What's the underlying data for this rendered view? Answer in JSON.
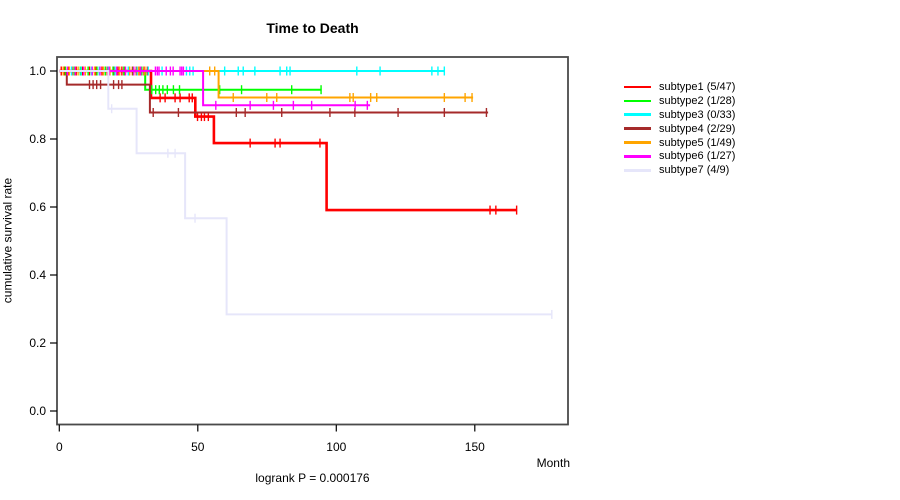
{
  "chart_data": {
    "type": "line",
    "variant": "kaplan-meier-step",
    "title": "Time to Death",
    "xlabel": "Month",
    "ylabel": "cumulative survival rate",
    "footnote": "logrank P = 0.000176",
    "x_ticks": [
      0,
      50,
      100,
      150
    ],
    "y_ticks": [
      "0.0",
      "0.2",
      "0.4",
      "0.6",
      "0.8",
      "1.0"
    ],
    "xlim": [
      -1,
      184
    ],
    "ylim": [
      -0.04,
      1.04
    ],
    "grid": false,
    "legend_position": "right",
    "series": [
      {
        "name": "subtype1",
        "label": "subtype1 (5/47)",
        "events": "5/47",
        "color": "#ff0000",
        "line_width": 2.6,
        "steps": [
          [
            0,
            1
          ],
          [
            33.1,
            1
          ],
          [
            33.1,
            0.921
          ],
          [
            49.1,
            0.921
          ],
          [
            49.1,
            0.866
          ],
          [
            55.8,
            0.866
          ],
          [
            55.8,
            0.788
          ],
          [
            96.5,
            0.788
          ],
          [
            96.5,
            0.591
          ],
          [
            165.1,
            0.591
          ]
        ],
        "censors": [
          [
            0.7,
            1
          ],
          [
            1.8,
            1
          ],
          [
            3.2,
            1
          ],
          [
            4.6,
            1
          ],
          [
            6.1,
            1
          ],
          [
            8.3,
            1
          ],
          [
            10.9,
            1
          ],
          [
            13.2,
            1
          ],
          [
            15.4,
            1
          ],
          [
            17.3,
            1
          ],
          [
            19.8,
            1
          ],
          [
            21.2,
            1
          ],
          [
            22.6,
            1
          ],
          [
            23.8,
            1
          ],
          [
            25.1,
            1
          ],
          [
            26.4,
            1
          ],
          [
            27.8,
            1
          ],
          [
            29.2,
            1
          ],
          [
            30.6,
            1
          ],
          [
            31.8,
            1
          ],
          [
            36.4,
            0.921
          ],
          [
            38.2,
            0.921
          ],
          [
            41.8,
            0.921
          ],
          [
            43.6,
            0.921
          ],
          [
            46.9,
            0.921
          ],
          [
            48,
            0.921
          ],
          [
            49.9,
            0.866
          ],
          [
            51.3,
            0.866
          ],
          [
            52.4,
            0.866
          ],
          [
            53.8,
            0.866
          ],
          [
            68.9,
            0.788
          ],
          [
            77.9,
            0.788
          ],
          [
            79.7,
            0.788
          ],
          [
            94.1,
            0.788
          ],
          [
            155.5,
            0.591
          ],
          [
            157.6,
            0.591
          ],
          [
            165.1,
            0.591
          ]
        ]
      },
      {
        "name": "subtype2",
        "label": "subtype2 (1/28)",
        "events": "1/28",
        "color": "#00ff00",
        "line_width": 2,
        "steps": [
          [
            0,
            1
          ],
          [
            31,
            1
          ],
          [
            31,
            0.945
          ],
          [
            94.7,
            0.945
          ]
        ],
        "censors": [
          [
            2.2,
            1
          ],
          [
            5.3,
            1
          ],
          [
            7.6,
            1
          ],
          [
            10.4,
            1
          ],
          [
            13.6,
            1
          ],
          [
            16.6,
            1
          ],
          [
            19.4,
            1
          ],
          [
            23.3,
            1
          ],
          [
            26.7,
            1
          ],
          [
            29.8,
            1
          ],
          [
            33.4,
            0.945
          ],
          [
            34.8,
            0.945
          ],
          [
            36.1,
            0.945
          ],
          [
            37.4,
            0.945
          ],
          [
            39,
            0.945
          ],
          [
            41.2,
            0.945
          ],
          [
            43.4,
            0.945
          ],
          [
            57.9,
            0.945
          ],
          [
            65.8,
            0.945
          ],
          [
            83.9,
            0.945
          ],
          [
            94.5,
            0.945
          ]
        ]
      },
      {
        "name": "subtype3",
        "label": "subtype3 (0/33)",
        "events": "0/33",
        "color": "#00ffff",
        "line_width": 2,
        "steps": [
          [
            0,
            1
          ],
          [
            139.2,
            1
          ]
        ],
        "censors": [
          [
            4.4,
            1
          ],
          [
            7.9,
            1
          ],
          [
            11.6,
            1
          ],
          [
            14.4,
            1
          ],
          [
            17.6,
            1
          ],
          [
            20.1,
            1
          ],
          [
            24.9,
            1
          ],
          [
            28.1,
            1
          ],
          [
            32.1,
            1
          ],
          [
            37.1,
            1
          ],
          [
            45.9,
            1
          ],
          [
            47.1,
            1
          ],
          [
            48.3,
            1
          ],
          [
            59.7,
            1
          ],
          [
            64.6,
            1
          ],
          [
            66.4,
            1
          ],
          [
            70.6,
            1
          ],
          [
            79.7,
            1
          ],
          [
            82.1,
            1
          ],
          [
            83.3,
            1
          ],
          [
            107.4,
            1
          ],
          [
            115.8,
            1
          ],
          [
            134.5,
            1
          ],
          [
            136.7,
            1
          ],
          [
            139,
            1
          ]
        ]
      },
      {
        "name": "subtype4",
        "label": "subtype4 (2/29)",
        "events": "2/29",
        "color": "#a52a2a",
        "line_width": 2,
        "steps": [
          [
            0,
            1
          ],
          [
            2.7,
            1
          ],
          [
            2.7,
            0.96
          ],
          [
            32.7,
            0.96
          ],
          [
            32.7,
            0.878
          ],
          [
            154.8,
            0.878
          ]
        ],
        "censors": [
          [
            10.9,
            0.96
          ],
          [
            12.2,
            0.96
          ],
          [
            13.5,
            0.96
          ],
          [
            14.9,
            0.96
          ],
          [
            19.6,
            0.96
          ],
          [
            21.4,
            0.96
          ],
          [
            22.6,
            0.96
          ],
          [
            33.9,
            0.878
          ],
          [
            43,
            0.878
          ],
          [
            63.9,
            0.878
          ],
          [
            67.1,
            0.878
          ],
          [
            80.3,
            0.878
          ],
          [
            97.7,
            0.878
          ],
          [
            106.7,
            0.878
          ],
          [
            122.3,
            0.878
          ],
          [
            139,
            0.878
          ],
          [
            154.2,
            0.878
          ]
        ]
      },
      {
        "name": "subtype5",
        "label": "subtype5 (1/49)",
        "events": "1/49",
        "color": "#ffa500",
        "line_width": 2,
        "steps": [
          [
            0,
            1
          ],
          [
            57.5,
            1
          ],
          [
            57.5,
            0.922
          ],
          [
            149.4,
            0.922
          ]
        ],
        "censors": [
          [
            1.4,
            1
          ],
          [
            3.6,
            1
          ],
          [
            6.8,
            1
          ],
          [
            9.4,
            1
          ],
          [
            12.7,
            1
          ],
          [
            15.9,
            1
          ],
          [
            18.3,
            1
          ],
          [
            21.8,
            1
          ],
          [
            25.4,
            1
          ],
          [
            28.6,
            1
          ],
          [
            30.9,
            1
          ],
          [
            54.3,
            1
          ],
          [
            56.1,
            1
          ],
          [
            62.8,
            0.922
          ],
          [
            74.9,
            0.922
          ],
          [
            78.5,
            0.922
          ],
          [
            104.9,
            0.922
          ],
          [
            106.1,
            0.922
          ],
          [
            112.4,
            0.922
          ],
          [
            114.6,
            0.922
          ],
          [
            139,
            0.922
          ],
          [
            146.5,
            0.922
          ],
          [
            149,
            0.922
          ]
        ]
      },
      {
        "name": "subtype6",
        "label": "subtype6 (1/27)",
        "events": "1/27",
        "color": "#ff00ff",
        "line_width": 2,
        "steps": [
          [
            0,
            1
          ],
          [
            51.9,
            1
          ],
          [
            51.9,
            0.899
          ],
          [
            112.2,
            0.899
          ]
        ],
        "censors": [
          [
            2.9,
            1
          ],
          [
            5.7,
            1
          ],
          [
            8.8,
            1
          ],
          [
            11.9,
            1
          ],
          [
            14.7,
            1
          ],
          [
            18,
            1
          ],
          [
            20.7,
            1
          ],
          [
            23.9,
            1
          ],
          [
            26.9,
            1
          ],
          [
            29.4,
            1
          ],
          [
            34.7,
            1
          ],
          [
            35.4,
            1
          ],
          [
            36,
            1
          ],
          [
            38.6,
            1
          ],
          [
            40.1,
            1
          ],
          [
            41.1,
            1
          ],
          [
            43.6,
            1
          ],
          [
            44.2,
            1
          ],
          [
            44.8,
            1
          ],
          [
            56.5,
            0.899
          ],
          [
            68.9,
            0.899
          ],
          [
            77.3,
            0.899
          ],
          [
            84.5,
            0.899
          ],
          [
            91.1,
            0.899
          ],
          [
            106.8,
            0.899
          ],
          [
            111.2,
            0.899
          ]
        ]
      },
      {
        "name": "subtype7",
        "label": "subtype7 (4/9)",
        "events": "4/9",
        "color": "#e6e6fa",
        "line_width": 2,
        "steps": [
          [
            0,
            1
          ],
          [
            17.7,
            1
          ],
          [
            17.7,
            0.889
          ],
          [
            27.9,
            0.889
          ],
          [
            27.9,
            0.758
          ],
          [
            45.4,
            0.758
          ],
          [
            45.4,
            0.567
          ],
          [
            60.4,
            0.567
          ],
          [
            60.4,
            0.284
          ],
          [
            177.8,
            0.284
          ]
        ],
        "censors": [
          [
            18.9,
            0.889
          ],
          [
            39.2,
            0.758
          ],
          [
            41.8,
            0.758
          ],
          [
            49,
            0.567
          ],
          [
            177.8,
            0.284
          ]
        ]
      }
    ]
  }
}
